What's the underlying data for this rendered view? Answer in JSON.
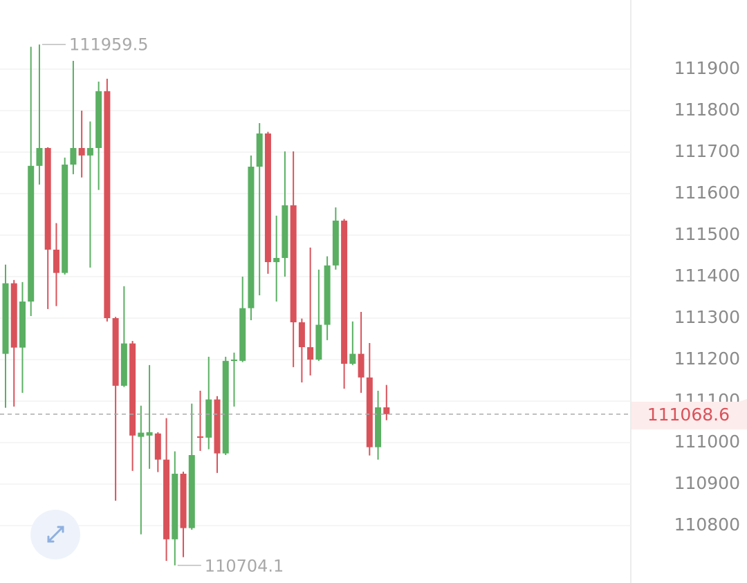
{
  "chart_data": {
    "type": "candlestick",
    "up_color": "#5aaf62",
    "down_color": "#d9525a",
    "open": [
      111214,
      111384,
      111229,
      111340,
      111667,
      111710,
      111465,
      111409,
      111670,
      111710,
      111692,
      111710,
      111847,
      111300,
      111137,
      111239,
      111014,
      111017,
      111022,
      110959,
      110767,
      110925,
      110794,
      111015,
      111012,
      111104,
      110974,
      111197,
      111197,
      111324,
      111665,
      111745,
      111435,
      111445,
      111572,
      111290,
      111230,
      111200,
      111284,
      111427,
      111535,
      111190,
      111214,
      111157,
      110989,
      111085
    ],
    "high": [
      111429,
      111392,
      111387,
      111954,
      111959.5,
      111712,
      111529,
      111687,
      111920,
      111800,
      111774,
      111870,
      111877,
      111303,
      111377,
      111245,
      111089,
      111187,
      111025,
      111059,
      110979,
      110930,
      111094,
      111125,
      111207,
      111112,
      111207,
      111217,
      111400,
      111692,
      111770,
      111749,
      111547,
      111702,
      111702,
      111299,
      111470,
      111417,
      111449,
      111567,
      111539,
      111292,
      111315,
      111240,
      111125,
      111139
    ],
    "low": [
      111084,
      111087,
      111120,
      111305,
      111622,
      111322,
      111329,
      111405,
      111647,
      111639,
      111422,
      111609,
      111292,
      110860,
      111134,
      110932,
      110779,
      110937,
      110929,
      110715,
      110704.1,
      110724,
      110790,
      110980,
      110984,
      110927,
      110970,
      111087,
      111194,
      111295,
      111355,
      111407,
      111340,
      111400,
      111182,
      111145,
      111162,
      111197,
      111247,
      111417,
      111130,
      111187,
      111120,
      110969,
      110959,
      111054
    ],
    "close": [
      111384,
      111229,
      111340,
      111667,
      111710,
      111465,
      111409,
      111670,
      111710,
      111692,
      111710,
      111847,
      111300,
      111137,
      111239,
      111017,
      111024,
      111025,
      110959,
      110767,
      110925,
      110794,
      110970,
      111012,
      111104,
      110974,
      111197,
      111200,
      111324,
      111665,
      111745,
      111435,
      111445,
      111572,
      111290,
      111230,
      111200,
      111284,
      111427,
      111535,
      111190,
      111214,
      111157,
      110989,
      111085,
      111068.6
    ],
    "ylim": [
      110661.7,
      112066.7
    ],
    "yticks": [
      110800,
      110900,
      111000,
      111100,
      111200,
      111300,
      111400,
      111500,
      111600,
      111700,
      111800,
      111900
    ],
    "grid": true,
    "max_index": 4,
    "min_index": 20
  }
}
